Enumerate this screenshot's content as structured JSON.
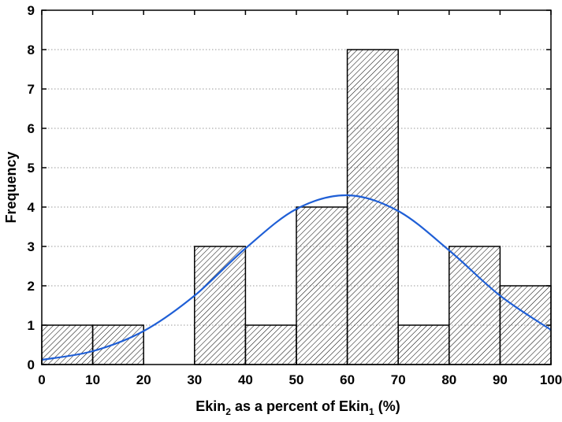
{
  "chart_data": {
    "type": "bar",
    "bins": [
      {
        "x0": 0,
        "x1": 10,
        "value": 1
      },
      {
        "x0": 10,
        "x1": 20,
        "value": 1
      },
      {
        "x0": 20,
        "x1": 30,
        "value": 0
      },
      {
        "x0": 30,
        "x1": 40,
        "value": 3
      },
      {
        "x0": 40,
        "x1": 50,
        "value": 1
      },
      {
        "x0": 50,
        "x1": 60,
        "value": 4
      },
      {
        "x0": 60,
        "x1": 70,
        "value": 8
      },
      {
        "x0": 70,
        "x1": 80,
        "value": 1
      },
      {
        "x0": 80,
        "x1": 90,
        "value": 3
      },
      {
        "x0": 90,
        "x1": 100,
        "value": 2
      }
    ],
    "fit_curve": {
      "x": [
        0,
        10,
        20,
        30,
        40,
        50,
        60,
        70,
        80,
        90,
        100
      ],
      "y": [
        0.12,
        0.34,
        0.85,
        1.75,
        2.95,
        3.95,
        4.3,
        3.9,
        2.9,
        1.75,
        0.88
      ]
    },
    "xlabel": {
      "main": "Ekin",
      "sub1": "2",
      "middle": " as a percent of Ekin",
      "sub2": "1",
      "end": " (%)"
    },
    "ylabel": "Frequency",
    "xlim": [
      0,
      100
    ],
    "ylim": [
      0,
      9
    ],
    "xticks": [
      0,
      10,
      20,
      30,
      40,
      50,
      60,
      70,
      80,
      90,
      100
    ],
    "yticks": [
      0,
      1,
      2,
      3,
      4,
      5,
      6,
      7,
      8,
      9
    ],
    "grid": "horizontal-dotted",
    "colors": {
      "bar_stroke": "#000000",
      "hatch": "#000000",
      "curve": "#1f5fd6",
      "grid": "#9a9a9a"
    }
  }
}
